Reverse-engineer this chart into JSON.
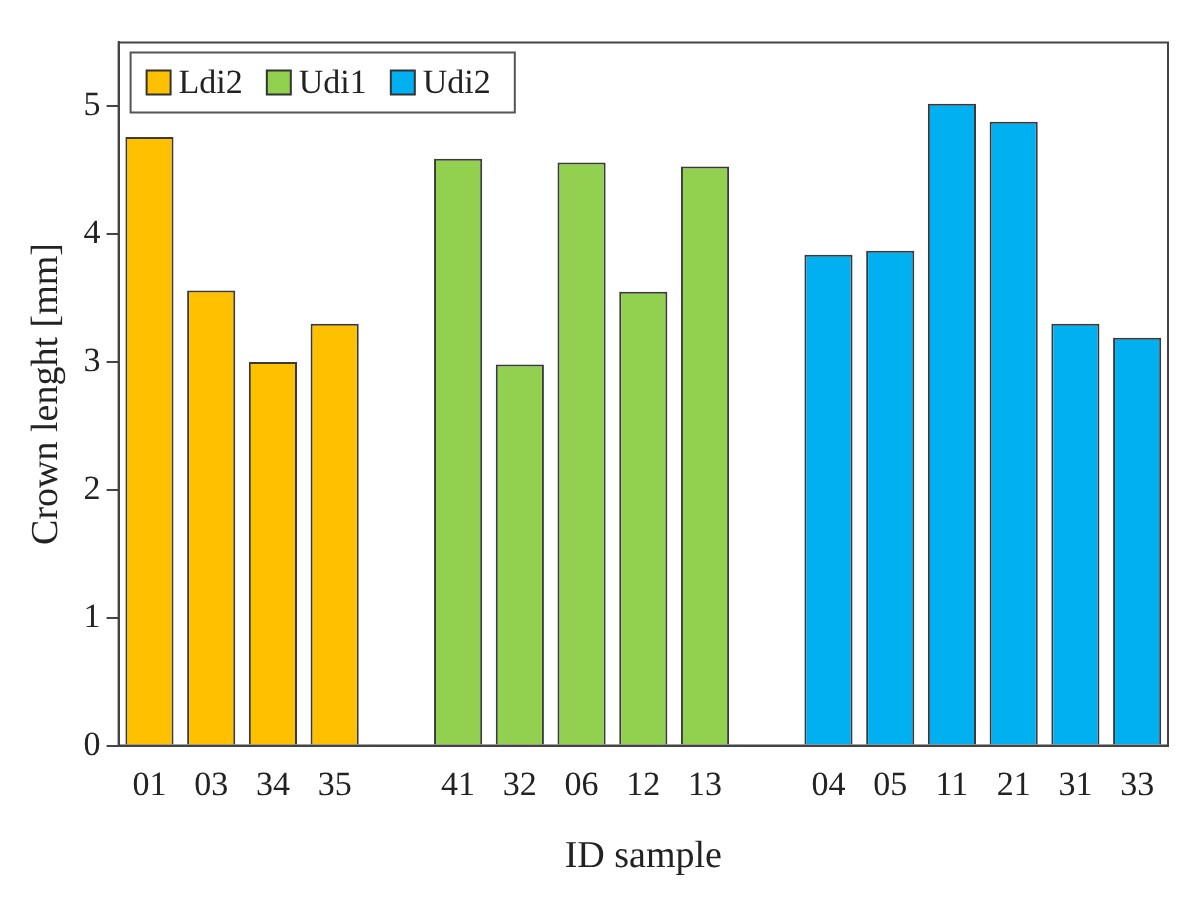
{
  "chart_data": {
    "type": "bar",
    "xlabel": "ID sample",
    "ylabel": "Crown lenght [mm]",
    "categories": [
      "01",
      "03",
      "34",
      "35",
      null,
      "41",
      "32",
      "06",
      "12",
      "13",
      null,
      "04",
      "05",
      "11",
      "21",
      "31",
      "33"
    ],
    "series": [
      {
        "name": "Ldi2",
        "color": "#ffc000",
        "values": [
          4.76,
          3.56,
          3.0,
          3.3,
          null,
          null,
          null,
          null,
          null,
          null,
          null,
          null,
          null,
          null,
          null,
          null,
          null
        ]
      },
      {
        "name": "Udi1",
        "color": "#92d050",
        "values": [
          null,
          null,
          null,
          null,
          null,
          4.59,
          2.98,
          4.56,
          3.55,
          4.53,
          null,
          null,
          null,
          null,
          null,
          null,
          null
        ]
      },
      {
        "name": "Udi2",
        "color": "#00b0f0",
        "values": [
          null,
          null,
          null,
          null,
          null,
          null,
          null,
          null,
          null,
          null,
          null,
          3.84,
          3.87,
          5.02,
          4.88,
          3.3,
          3.19
        ]
      }
    ],
    "ylim": [
      0,
      5.5
    ],
    "yticks": [
      0,
      1,
      2,
      3,
      4,
      5
    ],
    "grid": false,
    "legend": "top left"
  }
}
